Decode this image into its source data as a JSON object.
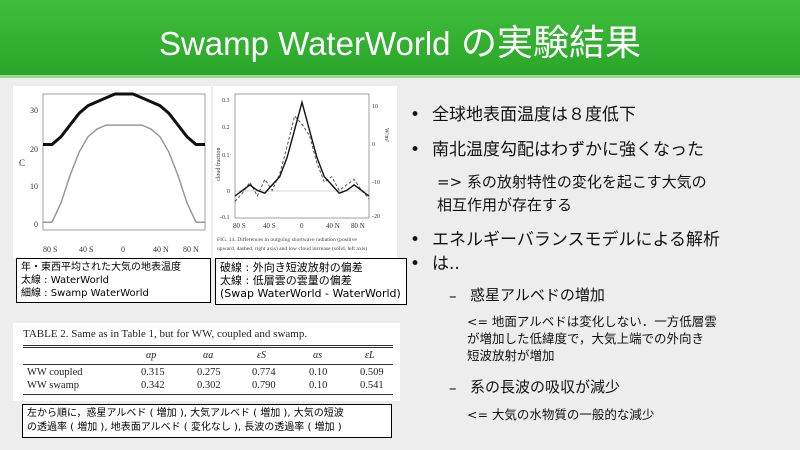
{
  "title": {
    "en": "Swamp WaterWorld",
    "jp": "の実験結果"
  },
  "fig1": {
    "ylabel": "C",
    "yticks": [
      "30",
      "20",
      "10",
      "0"
    ],
    "xticks": [
      "80 S",
      "40 S",
      "0",
      "40 N",
      "80 N"
    ],
    "caption": [
      "年・東西平均された大気の地表温度",
      "太線 : WaterWorld",
      "細線 : Swamp WaterWorld"
    ]
  },
  "fig2": {
    "ylabel_left": "cloud fraction",
    "ylabel_right": "W/m²",
    "yticks_left": [
      "0.3",
      "0.2",
      "0.1",
      "0",
      "-0.1"
    ],
    "yticks_right": [
      "10",
      "0",
      "-10",
      "-20"
    ],
    "xticks": [
      "80 S",
      "40 S",
      "0",
      "40 N",
      "80 N"
    ],
    "figcap": [
      "FIG. 14. Differences in outgoing shortwave radiation (positive",
      "upward, dashed, right axis) and low cloud increase (solid, left axis)"
    ],
    "caption": [
      "破線 : 外向き短波放射の偏差",
      "太線 : 低層雲の雲量の偏差",
      "(Swap WaterWorld - WaterWorld)"
    ]
  },
  "table": {
    "title": "TABLE 2. Same as in Table 1, but for WW, coupled and swamp.",
    "headers": [
      "αp",
      "αa",
      "εS",
      "αs",
      "εL"
    ],
    "rows": [
      {
        "label": "WW coupled",
        "values": [
          "0.315",
          "0.275",
          "0.774",
          "0.10",
          "0.509"
        ]
      },
      {
        "label": "WW swamp",
        "values": [
          "0.342",
          "0.302",
          "0.790",
          "0.10",
          "0.541"
        ]
      }
    ],
    "caption": [
      "左から順に，惑星アルベド ( 増加 ), 大気アルベド ( 増加 ), 大気の短波",
      "の透過率 ( 増加 ), 地表面アルベド ( 変化なし ), 長波の透過率 ( 増加 )"
    ]
  },
  "bullets": {
    "b1": "全球地表面温度は８度低下",
    "b2": "南北温度勾配はわずかに強くなった",
    "b2_sub": [
      "=>  系の放射特性の変化を起こす大気の",
      "相互作用が存在する"
    ],
    "b3": [
      "エネルギーバランスモデルによる解析",
      "は.."
    ],
    "sub1": "惑星アルベドの増加",
    "sub1_note": [
      "<= 地面アルベドは変化しない．一方低層雲",
      "が増加した低緯度で，大気上端での外向き",
      "短波放射が増加"
    ],
    "sub2": "系の長波の吸収が減少",
    "sub2_note": "<=  大気の水物質の一般的な減少",
    "dash": "–"
  },
  "chart_data": [
    {
      "type": "line",
      "x": [
        -90,
        -80,
        -70,
        -60,
        -50,
        -40,
        -30,
        -20,
        -10,
        0,
        10,
        20,
        30,
        40,
        50,
        60,
        70,
        80,
        90
      ],
      "series": [
        {
          "values": [
            20,
            20,
            22,
            25,
            28,
            30,
            31,
            32,
            33,
            33,
            33,
            32,
            31,
            30,
            28,
            25,
            22,
            20,
            20
          ]
        },
        {
          "values": [
            0,
            0,
            5,
            12,
            18,
            22,
            24,
            25,
            25,
            25,
            25,
            25,
            24,
            22,
            18,
            12,
            5,
            0,
            0
          ]
        }
      ],
      "ylim": [
        -2,
        33
      ],
      "xlim": [
        -90,
        90
      ]
    },
    {
      "type": "line",
      "x": [
        -90,
        -80,
        -70,
        -60,
        -50,
        -40,
        -30,
        -20,
        -10,
        0,
        10,
        20,
        30,
        40,
        50,
        60,
        70,
        80,
        90
      ],
      "series": [
        {
          "values": [
            -0.02,
            0.0,
            0.02,
            0.0,
            -0.01,
            0.02,
            0.05,
            0.12,
            0.22,
            0.32,
            0.22,
            0.12,
            0.05,
            0.02,
            -0.01,
            0.0,
            0.02,
            0.0,
            -0.02
          ]
        },
        {
          "values": [
            -0.04,
            -0.01,
            0.03,
            -0.02,
            0.04,
            0.0,
            0.06,
            0.16,
            0.27,
            0.24,
            0.2,
            0.1,
            0.03,
            0.05,
            0.0,
            0.02,
            0.04,
            0.0,
            -0.03
          ]
        }
      ],
      "ylim": [
        -0.1,
        0.35
      ],
      "xlim": [
        -90,
        90
      ]
    }
  ]
}
